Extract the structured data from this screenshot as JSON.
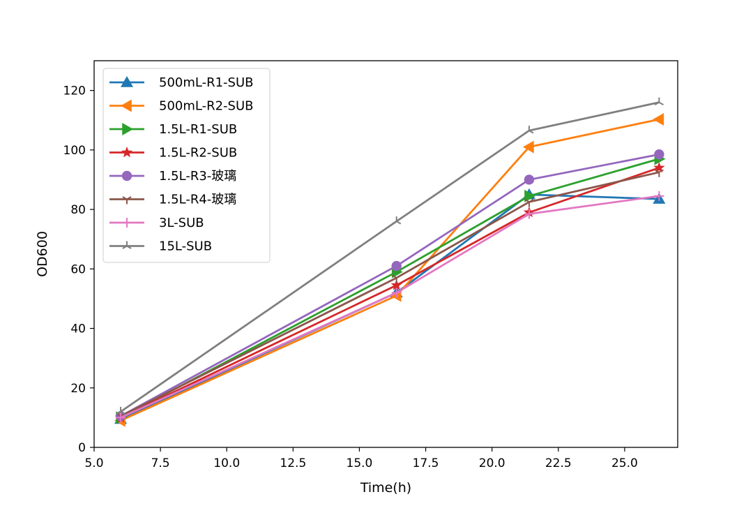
{
  "chart_data": {
    "type": "line",
    "title": "",
    "xlabel": "Time(h)",
    "ylabel": "OD600",
    "xlim": [
      5.0,
      27.0
    ],
    "ylim": [
      0,
      130
    ],
    "xticks": [
      5.0,
      7.5,
      10.0,
      12.5,
      15.0,
      17.5,
      20.0,
      22.5,
      25.0
    ],
    "xtick_labels": [
      "5.0",
      "7.5",
      "10.0",
      "12.5",
      "15.0",
      "17.5",
      "20.0",
      "22.5",
      "25.0"
    ],
    "yticks": [
      0,
      20,
      40,
      60,
      80,
      100,
      120
    ],
    "ytick_labels": [
      "0",
      "20",
      "40",
      "60",
      "80",
      "100",
      "120"
    ],
    "grid": false,
    "legend_position": "top-left",
    "series": [
      {
        "name": "500mL-R1-SUB",
        "color": "#1f77b4",
        "marker": "triangle-up",
        "points": [
          [
            6.0,
            9.5
          ],
          [
            16.4,
            52.0
          ],
          [
            21.4,
            85.0
          ],
          [
            26.3,
            83.5
          ]
        ]
      },
      {
        "name": "500mL-R2-SUB",
        "color": "#ff7f0e",
        "marker": "triangle-left",
        "points": [
          [
            6.0,
            9.0
          ],
          [
            16.4,
            51.0
          ],
          [
            21.4,
            101.0
          ],
          [
            26.3,
            110.3
          ]
        ]
      },
      {
        "name": "1.5L-R1-SUB",
        "color": "#2ca02c",
        "marker": "triangle-right",
        "points": [
          [
            6.0,
            10.0
          ],
          [
            16.4,
            59.0
          ],
          [
            21.4,
            84.5
          ],
          [
            26.3,
            97.0
          ]
        ]
      },
      {
        "name": "1.5L-R2-SUB",
        "color": "#d62728",
        "marker": "star",
        "points": [
          [
            6.0,
            10.0
          ],
          [
            16.4,
            54.5
          ],
          [
            21.4,
            79.0
          ],
          [
            26.3,
            94.0
          ]
        ]
      },
      {
        "name": "1.5L-R3-玻璃",
        "color": "#9467bd",
        "marker": "circle",
        "points": [
          [
            6.0,
            10.5
          ],
          [
            16.4,
            61.0
          ],
          [
            21.4,
            90.0
          ],
          [
            26.3,
            98.5
          ]
        ]
      },
      {
        "name": "1.5L-R4-玻璃",
        "color": "#8c564b",
        "marker": "tri-down",
        "points": [
          [
            6.0,
            10.5
          ],
          [
            16.4,
            57.0
          ],
          [
            21.4,
            82.5
          ],
          [
            26.3,
            92.5
          ]
        ]
      },
      {
        "name": "3L-SUB",
        "color": "#e377c2",
        "marker": "plus",
        "points": [
          [
            6.0,
            10.0
          ],
          [
            16.4,
            52.0
          ],
          [
            21.4,
            78.5
          ],
          [
            26.3,
            84.5
          ]
        ]
      },
      {
        "name": "15L-SUB",
        "color": "#7f7f7f",
        "marker": "tri-up",
        "points": [
          [
            6.0,
            12.0
          ],
          [
            16.4,
            76.0
          ],
          [
            21.4,
            106.5
          ],
          [
            26.3,
            116.0
          ]
        ]
      }
    ]
  }
}
